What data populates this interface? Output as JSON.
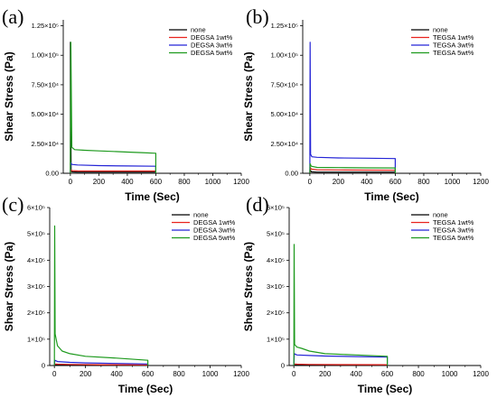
{
  "chart_data": [
    {
      "panel": "(a)",
      "type": "line",
      "xlabel": "Time (Sec)",
      "ylabel": "Shear Stress (Pa)",
      "xlim": [
        -50,
        1200
      ],
      "ylim": [
        0,
        130000
      ],
      "xticks": [
        "0",
        "200",
        "400",
        "600",
        "800",
        "1000",
        "1200"
      ],
      "yticks": [
        {
          "v": 0,
          "label": "0.00"
        },
        {
          "v": 25000,
          "label": "2.50×10⁴"
        },
        {
          "v": 50000,
          "label": "5.00×10⁴"
        },
        {
          "v": 75000,
          "label": "7.50×10⁴"
        },
        {
          "v": 100000,
          "label": "1.00×10⁵"
        },
        {
          "v": 125000,
          "label": "1.25×10⁵"
        }
      ],
      "legend_position": "top-right",
      "series": [
        {
          "name": "none",
          "color": "#000000",
          "x": [
            0,
            0,
            5,
            10,
            50,
            200,
            400,
            600,
            600
          ],
          "y": [
            0,
            111000,
            3000,
            1200,
            1000,
            1000,
            1000,
            1000,
            0
          ]
        },
        {
          "name": "DEGSA 1wt%",
          "color": "#e8231e",
          "x": [
            0,
            5,
            10,
            50,
            200,
            400,
            600,
            600
          ],
          "y": [
            0,
            3000,
            2200,
            2000,
            1900,
            1900,
            1900,
            0
          ]
        },
        {
          "name": "DEGSA 3wt%",
          "color": "#2424d6",
          "x": [
            0,
            3,
            10,
            50,
            200,
            400,
            600,
            600
          ],
          "y": [
            0,
            9000,
            7500,
            7000,
            6500,
            6200,
            6000,
            0
          ]
        },
        {
          "name": "DEGSA 5wt%",
          "color": "#1e9a1e",
          "x": [
            0,
            3,
            10,
            30,
            100,
            200,
            300,
            400,
            500,
            600,
            600
          ],
          "y": [
            0,
            111000,
            22000,
            20000,
            19500,
            19000,
            18500,
            18000,
            17500,
            17000,
            0
          ]
        }
      ]
    },
    {
      "panel": "(b)",
      "type": "line",
      "xlabel": "Time (Sec)",
      "ylabel": "Shear Stress (Pa)",
      "xlim": [
        -50,
        1200
      ],
      "ylim": [
        0,
        130000
      ],
      "xticks": [
        "0",
        "200",
        "400",
        "600",
        "800",
        "1000",
        "1200"
      ],
      "yticks": [
        {
          "v": 0,
          "label": "0.00"
        },
        {
          "v": 25000,
          "label": "2.50×10⁴"
        },
        {
          "v": 50000,
          "label": "5.00×10⁴"
        },
        {
          "v": 75000,
          "label": "7.50×10⁴"
        },
        {
          "v": 100000,
          "label": "1.00×10⁵"
        },
        {
          "v": 125000,
          "label": "1.25×10⁵"
        }
      ],
      "legend_position": "top-right",
      "series": [
        {
          "name": "none",
          "color": "#000000",
          "x": [
            0,
            2,
            10,
            50,
            200,
            400,
            600,
            600
          ],
          "y": [
            0,
            3000,
            1200,
            1000,
            1000,
            1000,
            1000,
            0
          ]
        },
        {
          "name": "TEGSA 1wt%",
          "color": "#e8231e",
          "x": [
            0,
            3,
            10,
            50,
            200,
            400,
            600,
            600
          ],
          "y": [
            0,
            5000,
            3500,
            3000,
            2800,
            2700,
            2600,
            0
          ]
        },
        {
          "name": "TEGSA 3wt%",
          "color": "#2424d6",
          "x": [
            0,
            2,
            5,
            15,
            50,
            200,
            400,
            600,
            600
          ],
          "y": [
            0,
            111000,
            16000,
            14000,
            13500,
            13000,
            12800,
            12500,
            0
          ]
        },
        {
          "name": "TEGSA 5wt%",
          "color": "#1e9a1e",
          "x": [
            0,
            2,
            10,
            50,
            200,
            400,
            600,
            600
          ],
          "y": [
            0,
            8000,
            6000,
            5000,
            4800,
            4600,
            4500,
            0
          ]
        }
      ]
    },
    {
      "panel": "(c)",
      "type": "line",
      "xlabel": "Time (Sec)",
      "ylabel": "Shear Stress (Pa)",
      "xlim": [
        -30,
        1200
      ],
      "ylim": [
        0,
        600000
      ],
      "xticks": [
        "0",
        "200",
        "400",
        "600",
        "800",
        "1000",
        "1200"
      ],
      "yticks": [
        {
          "v": 0,
          "label": "0"
        },
        {
          "v": 100000,
          "label": "1×10⁵"
        },
        {
          "v": 200000,
          "label": "2×10⁵"
        },
        {
          "v": 300000,
          "label": "3×10⁵"
        },
        {
          "v": 400000,
          "label": "4×10⁵"
        },
        {
          "v": 500000,
          "label": "5×10⁵"
        },
        {
          "v": 600000,
          "label": "6×10⁵"
        }
      ],
      "legend_position": "top-right",
      "series": [
        {
          "name": "none",
          "color": "#000000",
          "x": [
            0,
            5,
            20,
            100,
            300,
            600,
            600
          ],
          "y": [
            0,
            4000,
            3000,
            2000,
            1500,
            1000,
            0
          ]
        },
        {
          "name": "DEGSA 1wt%",
          "color": "#e8231e",
          "x": [
            0,
            5,
            20,
            100,
            300,
            600,
            600
          ],
          "y": [
            0,
            6000,
            5000,
            4000,
            3000,
            2500,
            0
          ]
        },
        {
          "name": "DEGSA 3wt%",
          "color": "#2424d6",
          "x": [
            0,
            3,
            20,
            100,
            200,
            400,
            600,
            600
          ],
          "y": [
            0,
            20000,
            15000,
            12000,
            10000,
            8000,
            6000,
            0
          ]
        },
        {
          "name": "DEGSA 5wt%",
          "color": "#1e9a1e",
          "x": [
            0,
            2,
            5,
            20,
            50,
            100,
            200,
            400,
            600,
            600
          ],
          "y": [
            0,
            530000,
            120000,
            75000,
            55000,
            45000,
            35000,
            28000,
            20000,
            0
          ]
        }
      ]
    },
    {
      "panel": "(d)",
      "type": "line",
      "xlabel": "Time (Sec)",
      "ylabel": "Shear Stress (Pa)",
      "xlim": [
        -30,
        1200
      ],
      "ylim": [
        0,
        600000
      ],
      "xticks": [
        "0",
        "200",
        "400",
        "600",
        "800",
        "1000",
        "1200"
      ],
      "yticks": [
        {
          "v": 0,
          "label": "0"
        },
        {
          "v": 100000,
          "label": "1×10⁵"
        },
        {
          "v": 200000,
          "label": "2×10⁵"
        },
        {
          "v": 300000,
          "label": "3×10⁵"
        },
        {
          "v": 400000,
          "label": "4×10⁵"
        },
        {
          "v": 500000,
          "label": "5×10⁵"
        },
        {
          "v": 600000,
          "label": "6×10⁵"
        }
      ],
      "legend_position": "top-right",
      "series": [
        {
          "name": "none",
          "color": "#000000",
          "x": [
            0,
            5,
            20,
            100,
            300,
            600,
            600
          ],
          "y": [
            0,
            4000,
            3000,
            2000,
            1500,
            1000,
            0
          ]
        },
        {
          "name": "TEGSA 1wt%",
          "color": "#e8231e",
          "x": [
            0,
            5,
            20,
            100,
            300,
            600,
            600
          ],
          "y": [
            0,
            6000,
            5000,
            4000,
            3500,
            3000,
            0
          ]
        },
        {
          "name": "TEGSA 3wt%",
          "color": "#2424d6",
          "x": [
            0,
            3,
            20,
            100,
            200,
            400,
            600,
            600
          ],
          "y": [
            0,
            45000,
            40000,
            38000,
            36000,
            34000,
            32000,
            0
          ]
        },
        {
          "name": "TEGSA 5wt%",
          "color": "#1e9a1e",
          "x": [
            0,
            2,
            5,
            20,
            50,
            100,
            200,
            400,
            600,
            600
          ],
          "y": [
            0,
            460000,
            80000,
            70000,
            65000,
            55000,
            45000,
            40000,
            35000,
            0
          ]
        }
      ]
    }
  ]
}
